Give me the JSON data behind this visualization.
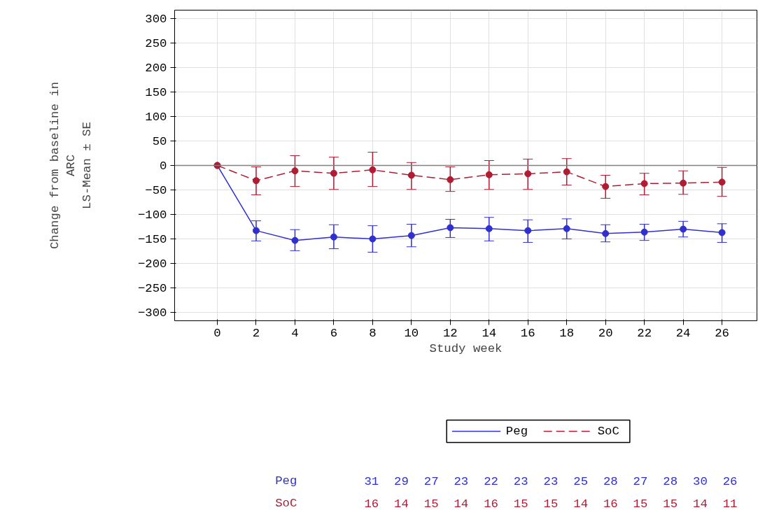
{
  "chart_data": {
    "type": "line",
    "xlabel": "Study week",
    "ylabel": "Change from baseline in\nARC\nLS-Mean ± SE",
    "x": [
      0,
      2,
      4,
      6,
      8,
      10,
      12,
      14,
      16,
      18,
      20,
      22,
      24,
      26
    ],
    "xlim": [
      -2.2,
      27.8
    ],
    "xticks": [
      0,
      2,
      4,
      6,
      8,
      10,
      12,
      14,
      16,
      18,
      20,
      22,
      24,
      26
    ],
    "ylim": [
      -317,
      317
    ],
    "yticks": [
      {
        "value": -300,
        "label": "−300"
      },
      {
        "value": -250,
        "label": "−250"
      },
      {
        "value": -200,
        "label": "−200"
      },
      {
        "value": -150,
        "label": "−150"
      },
      {
        "value": -100,
        "label": "−100"
      },
      {
        "value": -50,
        "label": "−50"
      },
      0,
      50,
      100,
      150,
      200,
      250,
      300
    ],
    "grid": true,
    "legend": "bottom",
    "marker": "circle",
    "ref_lines": [
      {
        "axis": "y",
        "value": 0,
        "color": "#808080"
      }
    ],
    "series": [
      {
        "name": "Peg",
        "color": "#3030d0",
        "line_style": "solid",
        "values": [
          0,
          -133,
          -153,
          -146,
          -150,
          -143,
          -127,
          -129,
          -133,
          -129,
          -139,
          -136,
          -130,
          -137
        ],
        "errors": [
          null,
          [
            -154,
            -113
          ],
          [
            -174,
            -131
          ],
          [
            -170,
            -121
          ],
          [
            -177,
            -123
          ],
          [
            -166,
            -120
          ],
          [
            -147,
            -110
          ],
          [
            -154,
            -106
          ],
          [
            -157,
            -111
          ],
          [
            -150,
            -109
          ],
          [
            -156,
            -121
          ],
          [
            -153,
            -120
          ],
          [
            -146,
            -114
          ],
          [
            -157,
            -119
          ]
        ]
      },
      {
        "name": "SoC",
        "color": "#b01c34",
        "line_style": "dashed",
        "values": [
          0,
          -31,
          -11,
          -16,
          -9,
          -20,
          -29,
          -19,
          -17,
          -13,
          -43,
          -37,
          -36,
          -34
        ],
        "errors": [
          null,
          [
            -60,
            -3
          ],
          [
            -43,
            20
          ],
          [
            -49,
            17
          ],
          [
            -43,
            27
          ],
          [
            -49,
            6
          ],
          [
            -53,
            -3
          ],
          [
            -49,
            10
          ],
          [
            -49,
            13
          ],
          [
            -40,
            14
          ],
          [
            -67,
            -20
          ],
          [
            -60,
            -16
          ],
          [
            -59,
            -11
          ],
          [
            -63,
            -4
          ]
        ]
      }
    ],
    "annotations": [
      "Peg",
      "31",
      "29",
      "27",
      "23",
      "22",
      "23",
      "23",
      "25",
      "28",
      "27",
      "28",
      "30",
      "26",
      "SoC",
      "16",
      "14",
      "15",
      "14",
      "16",
      "15",
      "15",
      "14",
      "16",
      "15",
      "15",
      "14",
      "11"
    ]
  }
}
